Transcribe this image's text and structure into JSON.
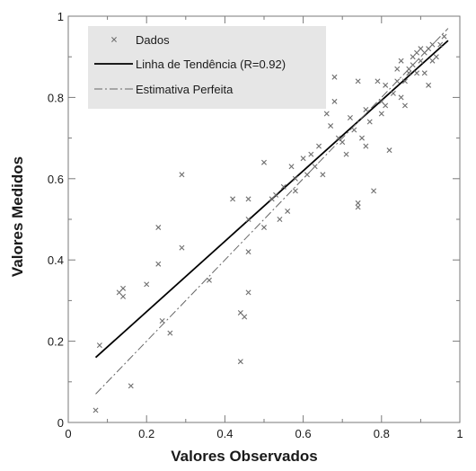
{
  "chart_data": {
    "type": "scatter",
    "title": "",
    "xlabel": "Valores Observados",
    "ylabel": "Valores Medidos",
    "xlim": [
      0,
      1
    ],
    "ylim": [
      0,
      1
    ],
    "x_ticks": [
      "0",
      "0.2",
      "0.4",
      "0.6",
      "0.8",
      "1"
    ],
    "y_ticks": [
      "0",
      "0.2",
      "0.4",
      "0.6",
      "0.8",
      "1"
    ],
    "grid": false,
    "legend_position": "top-left",
    "series": [
      {
        "name": "Dados",
        "style": "marker-x",
        "color": "#6e6e6e",
        "points": [
          [
            0.07,
            0.03
          ],
          [
            0.08,
            0.19
          ],
          [
            0.13,
            0.32
          ],
          [
            0.14,
            0.33
          ],
          [
            0.14,
            0.31
          ],
          [
            0.16,
            0.09
          ],
          [
            0.2,
            0.34
          ],
          [
            0.23,
            0.48
          ],
          [
            0.23,
            0.39
          ],
          [
            0.24,
            0.25
          ],
          [
            0.26,
            0.22
          ],
          [
            0.29,
            0.61
          ],
          [
            0.29,
            0.43
          ],
          [
            0.36,
            0.35
          ],
          [
            0.42,
            0.55
          ],
          [
            0.44,
            0.15
          ],
          [
            0.44,
            0.27
          ],
          [
            0.45,
            0.26
          ],
          [
            0.46,
            0.55
          ],
          [
            0.46,
            0.5
          ],
          [
            0.46,
            0.42
          ],
          [
            0.46,
            0.32
          ],
          [
            0.5,
            0.64
          ],
          [
            0.5,
            0.48
          ],
          [
            0.52,
            0.55
          ],
          [
            0.53,
            0.56
          ],
          [
            0.54,
            0.5
          ],
          [
            0.55,
            0.58
          ],
          [
            0.56,
            0.52
          ],
          [
            0.57,
            0.63
          ],
          [
            0.58,
            0.57
          ],
          [
            0.58,
            0.6
          ],
          [
            0.6,
            0.65
          ],
          [
            0.61,
            0.61
          ],
          [
            0.62,
            0.66
          ],
          [
            0.63,
            0.63
          ],
          [
            0.64,
            0.68
          ],
          [
            0.65,
            0.61
          ],
          [
            0.66,
            0.76
          ],
          [
            0.67,
            0.73
          ],
          [
            0.68,
            0.85
          ],
          [
            0.68,
            0.79
          ],
          [
            0.69,
            0.7
          ],
          [
            0.7,
            0.69
          ],
          [
            0.71,
            0.66
          ],
          [
            0.72,
            0.75
          ],
          [
            0.73,
            0.72
          ],
          [
            0.74,
            0.84
          ],
          [
            0.74,
            0.54
          ],
          [
            0.74,
            0.53
          ],
          [
            0.75,
            0.7
          ],
          [
            0.76,
            0.77
          ],
          [
            0.76,
            0.68
          ],
          [
            0.77,
            0.74
          ],
          [
            0.78,
            0.57
          ],
          [
            0.79,
            0.84
          ],
          [
            0.8,
            0.79
          ],
          [
            0.8,
            0.76
          ],
          [
            0.81,
            0.83
          ],
          [
            0.81,
            0.78
          ],
          [
            0.82,
            0.67
          ],
          [
            0.83,
            0.81
          ],
          [
            0.84,
            0.87
          ],
          [
            0.84,
            0.84
          ],
          [
            0.85,
            0.89
          ],
          [
            0.85,
            0.8
          ],
          [
            0.86,
            0.78
          ],
          [
            0.86,
            0.84
          ],
          [
            0.87,
            0.87
          ],
          [
            0.87,
            0.86
          ],
          [
            0.88,
            0.88
          ],
          [
            0.88,
            0.9
          ],
          [
            0.89,
            0.86
          ],
          [
            0.89,
            0.91
          ],
          [
            0.9,
            0.92
          ],
          [
            0.9,
            0.89
          ],
          [
            0.91,
            0.86
          ],
          [
            0.91,
            0.91
          ],
          [
            0.92,
            0.83
          ],
          [
            0.92,
            0.92
          ],
          [
            0.93,
            0.93
          ],
          [
            0.93,
            0.89
          ],
          [
            0.94,
            0.9
          ],
          [
            0.95,
            0.93
          ],
          [
            0.96,
            0.95
          ]
        ]
      },
      {
        "name": "Linha de Tendência (R=0.92)",
        "style": "solid-line",
        "color": "#000000",
        "points": [
          [
            0.07,
            0.16
          ],
          [
            0.97,
            0.94
          ]
        ]
      },
      {
        "name": "Estimativa Perfeita",
        "style": "dash-dot-line",
        "color": "#666666",
        "points": [
          [
            0.07,
            0.07
          ],
          [
            0.97,
            0.97
          ]
        ]
      }
    ]
  }
}
